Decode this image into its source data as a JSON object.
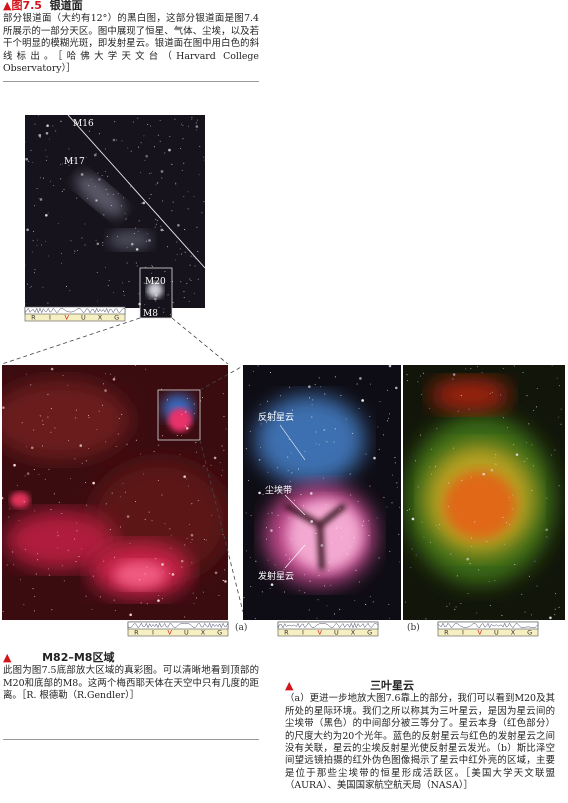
{
  "figure_7_5": {
    "marker": "▲",
    "label": "图7.5",
    "title": "银道面",
    "caption": "部分银道面（大约有12°）的黑白图，这部分银道面是图7.4所展示的一部分天区。图中展现了恒星、气体、尘埃，以及若干个明显的模糊光斑，即发射星云。银道面在图中用白色的斜线标出。［哈佛大学天文台（Harvard College Observatory）］"
  },
  "figure_7_6": {
    "marker": "▲",
    "title": "M82–M8区域",
    "caption": "此图为图7.5底部放大区域的真彩图。可以清晰地看到顶部的M20和底部的M8。这两个梅西耶天体在天空中只有几度的距离。［R. 根德勒（R.Gendler）］"
  },
  "figure_7_7": {
    "marker": "▲",
    "title": "三叶星云",
    "caption": "（a）更进一步地放大图7.6靠上的部分，我们可以看到M20及其所处的星际环境。我们之所以称其为三叶星云，是因为星云间的尘埃带（黑色）的中间部分被三等分了。星云本身（红色部分）的尺度大约为20个光年。蓝色的反射星云与红色的发射星云之间没有关联，星云的尘埃反射星光使反射星云发光。（b）斯比泽空间望远镜拍摄的红外伪色图像揭示了星云中红外亮的区域，主要是位于那些尘埃带的恒星形成活跃区。［美国大学天文联盟（AURA）、美国国家航空航天局（NASA）］"
  },
  "image_labels": {
    "galactic": [
      "M16",
      "M17",
      "M20",
      "M8"
    ],
    "trifid": [
      "反射星云",
      "尘埃带",
      "发射星云"
    ]
  },
  "panel_labels": [
    "(a)",
    "(b)"
  ],
  "spectrum_bands": [
    "R",
    "I",
    "V",
    "U",
    "X",
    "G"
  ]
}
